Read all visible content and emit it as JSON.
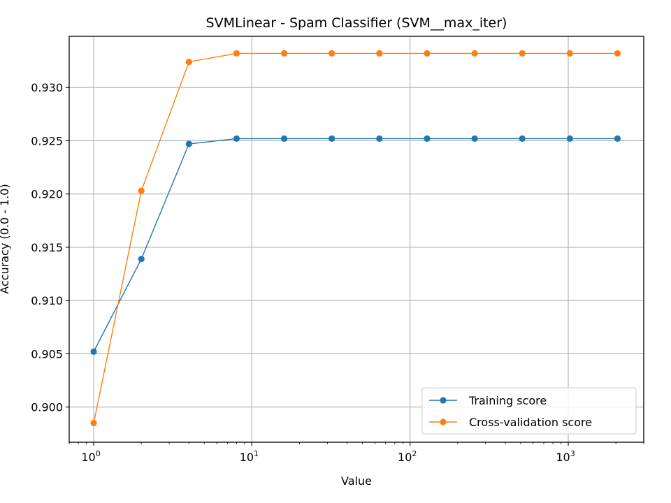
{
  "chart_data": {
    "type": "line",
    "title": "SVMLinear - Spam Classifier (SVM__max_iter)",
    "xlabel": "Value",
    "ylabel": "Accuracy (0.0 - 1.0)",
    "xscale": "log",
    "xlim": [
      0.7,
      3000
    ],
    "ylim": [
      0.8967,
      0.9348
    ],
    "x_ticks": [
      1,
      10,
      100,
      1000
    ],
    "x_tick_labels": [
      {
        "base": "10",
        "exp": "0"
      },
      {
        "base": "10",
        "exp": "1"
      },
      {
        "base": "10",
        "exp": "2"
      },
      {
        "base": "10",
        "exp": "3"
      }
    ],
    "y_ticks": [
      0.9,
      0.905,
      0.91,
      0.915,
      0.92,
      0.925,
      0.93
    ],
    "y_tick_labels": [
      "0.900",
      "0.905",
      "0.910",
      "0.915",
      "0.920",
      "0.925",
      "0.930"
    ],
    "grid": true,
    "legend_position": "bottom-right",
    "x": [
      1,
      2,
      4,
      8,
      16,
      32,
      64,
      128,
      256,
      512,
      1024,
      2048
    ],
    "series": [
      {
        "name": "Training score",
        "color": "#1f77b4",
        "values": [
          0.9052,
          0.9139,
          0.9247,
          0.9252,
          0.9252,
          0.9252,
          0.9252,
          0.9252,
          0.9252,
          0.9252,
          0.9252,
          0.9252
        ]
      },
      {
        "name": "Cross-validation score",
        "color": "#ff7f0e",
        "values": [
          0.8985,
          0.9203,
          0.9324,
          0.9332,
          0.9332,
          0.9332,
          0.9332,
          0.9332,
          0.9332,
          0.9332,
          0.9332,
          0.9332
        ]
      }
    ]
  }
}
